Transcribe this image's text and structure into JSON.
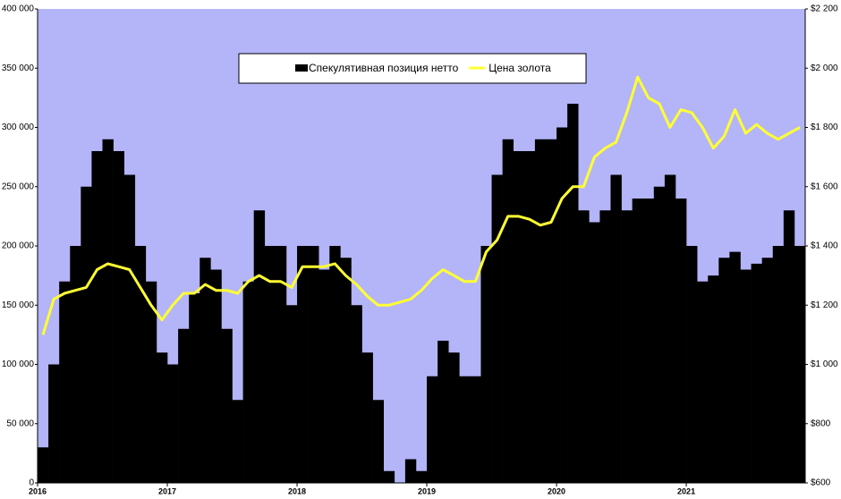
{
  "chart_data": {
    "type": "bar-line",
    "categories": [
      "2016",
      null,
      null,
      null,
      null,
      null,
      null,
      null,
      null,
      null,
      null,
      null,
      "2017",
      null,
      null,
      null,
      null,
      null,
      null,
      null,
      null,
      null,
      null,
      null,
      "2018",
      null,
      null,
      null,
      null,
      null,
      null,
      null,
      null,
      null,
      null,
      null,
      "2019",
      null,
      null,
      null,
      null,
      null,
      null,
      null,
      null,
      null,
      null,
      null,
      "2020",
      null,
      null,
      null,
      null,
      null,
      null,
      null,
      null,
      null,
      null,
      null,
      "2021",
      null,
      null,
      null,
      null,
      null,
      null,
      null,
      null,
      null,
      null
    ],
    "series": [
      {
        "name": "Спекулятивная позиция нетто",
        "type": "bar",
        "color": "#000000",
        "values": [
          30000,
          100000,
          170000,
          200000,
          250000,
          280000,
          290000,
          280000,
          260000,
          200000,
          170000,
          110000,
          100000,
          130000,
          160000,
          190000,
          180000,
          130000,
          70000,
          170000,
          230000,
          200000,
          200000,
          150000,
          200000,
          200000,
          180000,
          200000,
          190000,
          150000,
          110000,
          70000,
          10000,
          0,
          20000,
          10000,
          90000,
          120000,
          110000,
          90000,
          90000,
          200000,
          260000,
          290000,
          280000,
          280000,
          290000,
          290000,
          300000,
          320000,
          230000,
          220000,
          230000,
          260000,
          230000,
          240000,
          240000,
          250000,
          260000,
          240000,
          200000,
          170000,
          175000,
          190000,
          195000,
          180000,
          185000,
          190000,
          200000,
          230000,
          200000
        ]
      },
      {
        "name": "Цена золота",
        "type": "line",
        "axis": "y2",
        "color": "#ffff33",
        "values": [
          1100,
          1220,
          1240,
          1250,
          1260,
          1320,
          1340,
          1330,
          1320,
          1260,
          1200,
          1150,
          1200,
          1240,
          1240,
          1270,
          1250,
          1250,
          1240,
          1280,
          1300,
          1280,
          1280,
          1260,
          1330,
          1330,
          1330,
          1340,
          1300,
          1270,
          1230,
          1200,
          1200,
          1210,
          1220,
          1250,
          1290,
          1320,
          1300,
          1280,
          1280,
          1380,
          1420,
          1500,
          1500,
          1490,
          1470,
          1480,
          1560,
          1600,
          1600,
          1700,
          1730,
          1750,
          1850,
          1970,
          1900,
          1880,
          1800,
          1860,
          1850,
          1800,
          1730,
          1770,
          1860,
          1780,
          1810,
          1780,
          1760,
          1780,
          1800
        ]
      }
    ],
    "ylim": [
      0,
      400000
    ],
    "yticks": [
      {
        "value": 0,
        "label": "0"
      },
      {
        "value": 50000,
        "label": "50 000"
      },
      {
        "value": 100000,
        "label": "100 000"
      },
      {
        "value": 150000,
        "label": "150 000"
      },
      {
        "value": 200000,
        "label": "200 000"
      },
      {
        "value": 250000,
        "label": "250 000"
      },
      {
        "value": 300000,
        "label": "300 000"
      },
      {
        "value": 350000,
        "label": "350 000"
      },
      {
        "value": 400000,
        "label": "400 000"
      }
    ],
    "y2lim": [
      600,
      2200
    ],
    "y2ticks": [
      {
        "value": 600,
        "label": "$600"
      },
      {
        "value": 800,
        "label": "$800"
      },
      {
        "value": 1000,
        "label": "$1 000"
      },
      {
        "value": 1200,
        "label": "$1 200"
      },
      {
        "value": 1400,
        "label": "$1 400"
      },
      {
        "value": 1600,
        "label": "$1 600"
      },
      {
        "value": 1800,
        "label": "$1 800"
      },
      {
        "value": 2000,
        "label": "$2 000"
      },
      {
        "value": 2200,
        "label": "$2 200"
      }
    ],
    "plot_background": "#b4b4f8",
    "legend": "top"
  }
}
